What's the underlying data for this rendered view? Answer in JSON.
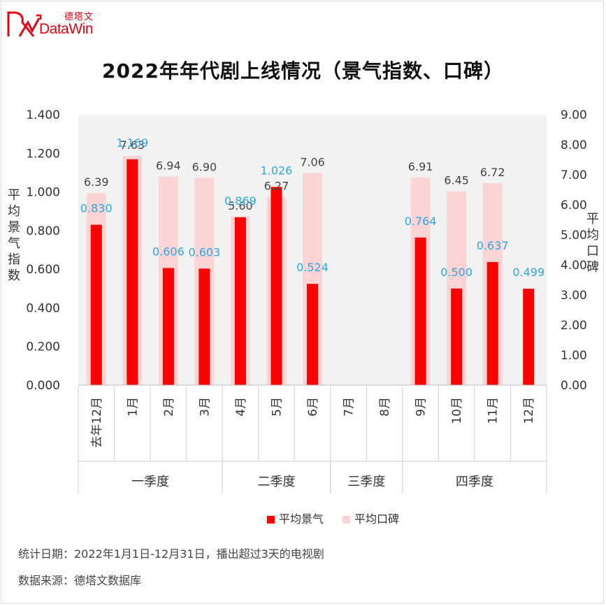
{
  "brand": {
    "cn": "德塔文",
    "en": "DataWin",
    "color": "#e60012"
  },
  "chart_data": {
    "type": "bar",
    "title": "2022年年代剧上线情况（景气指数、口碑）",
    "ylabel": "平均景气指数",
    "ylabel_right": "平均口碑",
    "ylim": [
      0,
      1.4
    ],
    "ylim_right": [
      0,
      9
    ],
    "yticks": [
      "0.000",
      "0.200",
      "0.400",
      "0.600",
      "0.800",
      "1.000",
      "1.200",
      "1.400"
    ],
    "yticks_right": [
      "0.00",
      "1.00",
      "2.00",
      "3.00",
      "4.00",
      "5.00",
      "6.00",
      "7.00",
      "8.00",
      "9.00"
    ],
    "categories": [
      "去年12月",
      "1月",
      "2月",
      "3月",
      "4月",
      "5月",
      "6月",
      "7月",
      "8月",
      "9月",
      "10月",
      "11月",
      "12月"
    ],
    "groups": [
      {
        "label": "一季度",
        "start": 0,
        "end": 3
      },
      {
        "label": "二季度",
        "start": 4,
        "end": 6
      },
      {
        "label": "三季度",
        "start": 7,
        "end": 8
      },
      {
        "label": "四季度",
        "start": 9,
        "end": 12
      }
    ],
    "series": [
      {
        "name": "平均景气",
        "axis": "left",
        "color": "#ff0000",
        "values": [
          0.83,
          1.169,
          0.606,
          0.603,
          0.869,
          1.026,
          0.524,
          null,
          null,
          0.764,
          0.5,
          0.637,
          0.499
        ],
        "labels": [
          "0.830",
          "1.169",
          "0.606",
          "0.603",
          "0.869",
          "1.026",
          "0.524",
          "",
          "",
          "0.764",
          "0.500",
          "0.637",
          "0.499"
        ],
        "label_color": "#2ea7e0"
      },
      {
        "name": "平均口碑",
        "axis": "right",
        "color": "#fbd5d5",
        "values": [
          6.39,
          7.63,
          6.94,
          6.9,
          5.6,
          6.27,
          7.06,
          null,
          null,
          6.91,
          6.45,
          6.72,
          null
        ],
        "labels": [
          "6.39",
          "7.63",
          "6.94",
          "6.90",
          "5.60",
          "6.27",
          "7.06",
          "",
          "",
          "6.91",
          "6.45",
          "6.72",
          ""
        ],
        "label_color": "#444444"
      }
    ],
    "legend": "bottom",
    "grid": false
  },
  "footnotes": [
    "统计日期：2022年1月1日-12月31日，播出超过3天的电视剧",
    "数据来源：德塔文数据库"
  ]
}
